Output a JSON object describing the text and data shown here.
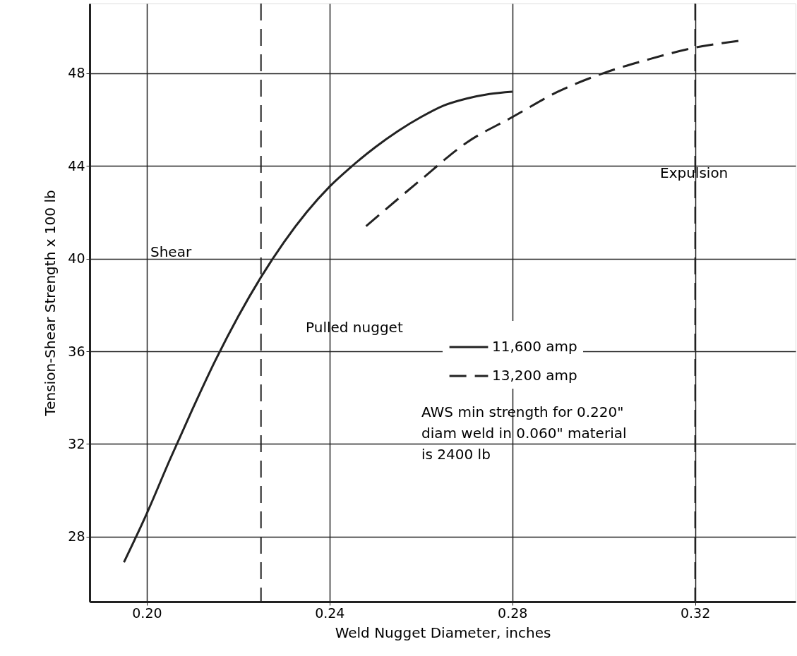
{
  "chart_data": {
    "type": "line",
    "xlabel": "Weld Nugget Diameter, inches",
    "ylabel": "Tension-Shear Strength x 100 lb",
    "series": [
      {
        "name": "11,600 amp",
        "color": "#222222",
        "line_style": "solid",
        "x": [
          0.195,
          0.2,
          0.205,
          0.21,
          0.215,
          0.22,
          0.225,
          0.23,
          0.235,
          0.24,
          0.245,
          0.25,
          0.255,
          0.26,
          0.265,
          0.27,
          0.275,
          0.28
        ],
        "values": [
          26.9,
          29.0,
          31.3,
          33.5,
          35.6,
          37.5,
          39.2,
          40.7,
          42.0,
          43.1,
          44.0,
          44.8,
          45.5,
          46.1,
          46.6,
          46.9,
          47.1,
          47.2
        ]
      },
      {
        "name": "13,200 amp",
        "color": "#222222",
        "line_style": "dashed",
        "x": [
          0.248,
          0.26,
          0.27,
          0.28,
          0.29,
          0.3,
          0.31,
          0.32,
          0.33
        ],
        "values": [
          41.4,
          43.4,
          45.0,
          46.1,
          47.2,
          48.0,
          48.6,
          49.1,
          49.4
        ]
      }
    ],
    "xlim": [
      0.1875,
      0.342
    ],
    "xticks": [
      {
        "value": 0.2,
        "label": "0.20"
      },
      0.24,
      0.28,
      0.32
    ],
    "ylim": [
      25.2,
      51.0
    ],
    "yticks": [
      28,
      32,
      36,
      40,
      44,
      48
    ],
    "grid": true,
    "legend": "right",
    "marker": "none",
    "ref_lines": [
      {
        "axis": "x",
        "value": 0.225,
        "line_style": "dashed",
        "color": "#222222"
      },
      {
        "axis": "x",
        "value": 0.32,
        "line_style": "dashed",
        "color": "#222222"
      }
    ],
    "annotations": [
      "Shear",
      "Pulled nugget",
      "Expulsion",
      "AWS min strength for 0.220\"\ndiam weld in 0.060\" material\nis  2400 lb"
    ]
  }
}
